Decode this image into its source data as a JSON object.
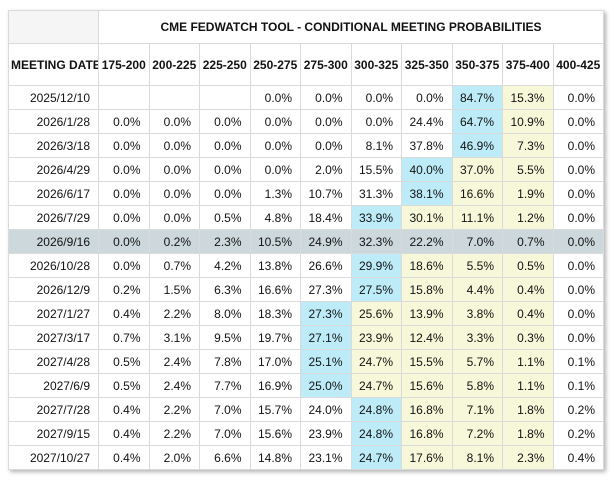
{
  "title": "CME FEDWATCH TOOL - CONDITIONAL MEETING PROBABILITIES",
  "columns": {
    "meeting_date_label": "MEETING DATE",
    "rate_buckets": [
      "175-200",
      "200-225",
      "225-250",
      "250-275",
      "275-300",
      "300-325",
      "325-350",
      "350-375",
      "375-400",
      "400-425"
    ]
  },
  "colors": {
    "max_probability_cell": "#bdecf8",
    "trailing_probability_cells": "#f7f7d9",
    "selected_row": "#ccd8db"
  },
  "rows": [
    {
      "date": "2025/12/10",
      "selected": false,
      "values": [
        "",
        "",
        "",
        "0.0%",
        "0.0%",
        "0.0%",
        "0.0%",
        "84.7%",
        "15.3%",
        "0.0%"
      ],
      "highlights": [
        "",
        "",
        "",
        "",
        "",
        "",
        "",
        "blue",
        "yellow",
        ""
      ]
    },
    {
      "date": "2026/1/28",
      "selected": false,
      "values": [
        "0.0%",
        "0.0%",
        "0.0%",
        "0.0%",
        "0.0%",
        "0.0%",
        "24.4%",
        "64.7%",
        "10.9%",
        "0.0%"
      ],
      "highlights": [
        "",
        "",
        "",
        "",
        "",
        "",
        "",
        "blue",
        "yellow",
        ""
      ]
    },
    {
      "date": "2026/3/18",
      "selected": false,
      "values": [
        "0.0%",
        "0.0%",
        "0.0%",
        "0.0%",
        "0.0%",
        "8.1%",
        "37.8%",
        "46.9%",
        "7.3%",
        "0.0%"
      ],
      "highlights": [
        "",
        "",
        "",
        "",
        "",
        "",
        "",
        "blue",
        "yellow",
        ""
      ]
    },
    {
      "date": "2026/4/29",
      "selected": false,
      "values": [
        "0.0%",
        "0.0%",
        "0.0%",
        "0.0%",
        "2.0%",
        "15.5%",
        "40.0%",
        "37.0%",
        "5.5%",
        "0.0%"
      ],
      "highlights": [
        "",
        "",
        "",
        "",
        "",
        "",
        "blue",
        "yellow",
        "yellow",
        ""
      ]
    },
    {
      "date": "2026/6/17",
      "selected": false,
      "values": [
        "0.0%",
        "0.0%",
        "0.0%",
        "1.3%",
        "10.7%",
        "31.3%",
        "38.1%",
        "16.6%",
        "1.9%",
        "0.0%"
      ],
      "highlights": [
        "",
        "",
        "",
        "",
        "",
        "",
        "blue",
        "yellow",
        "yellow",
        ""
      ]
    },
    {
      "date": "2026/7/29",
      "selected": false,
      "values": [
        "0.0%",
        "0.0%",
        "0.5%",
        "4.8%",
        "18.4%",
        "33.9%",
        "30.1%",
        "11.1%",
        "1.2%",
        "0.0%"
      ],
      "highlights": [
        "",
        "",
        "",
        "",
        "",
        "blue",
        "yellow",
        "yellow",
        "yellow",
        ""
      ]
    },
    {
      "date": "2026/9/16",
      "selected": true,
      "values": [
        "0.0%",
        "0.2%",
        "2.3%",
        "10.5%",
        "24.9%",
        "32.3%",
        "22.2%",
        "7.0%",
        "0.7%",
        "0.0%"
      ],
      "highlights": [
        "",
        "",
        "",
        "",
        "",
        "",
        "",
        "",
        "",
        ""
      ]
    },
    {
      "date": "2026/10/28",
      "selected": false,
      "values": [
        "0.0%",
        "0.7%",
        "4.2%",
        "13.8%",
        "26.6%",
        "29.9%",
        "18.6%",
        "5.5%",
        "0.5%",
        "0.0%"
      ],
      "highlights": [
        "",
        "",
        "",
        "",
        "",
        "blue",
        "yellow",
        "yellow",
        "yellow",
        ""
      ]
    },
    {
      "date": "2026/12/9",
      "selected": false,
      "values": [
        "0.2%",
        "1.5%",
        "6.3%",
        "16.6%",
        "27.3%",
        "27.5%",
        "15.8%",
        "4.4%",
        "0.4%",
        "0.0%"
      ],
      "highlights": [
        "",
        "",
        "",
        "",
        "",
        "blue",
        "yellow",
        "yellow",
        "yellow",
        ""
      ]
    },
    {
      "date": "2027/1/27",
      "selected": false,
      "values": [
        "0.4%",
        "2.2%",
        "8.0%",
        "18.3%",
        "27.3%",
        "25.6%",
        "13.9%",
        "3.8%",
        "0.4%",
        "0.0%"
      ],
      "highlights": [
        "",
        "",
        "",
        "",
        "blue",
        "yellow",
        "yellow",
        "yellow",
        "yellow",
        ""
      ]
    },
    {
      "date": "2027/3/17",
      "selected": false,
      "values": [
        "0.7%",
        "3.1%",
        "9.5%",
        "19.7%",
        "27.1%",
        "23.9%",
        "12.4%",
        "3.3%",
        "0.3%",
        "0.0%"
      ],
      "highlights": [
        "",
        "",
        "",
        "",
        "blue",
        "yellow",
        "yellow",
        "yellow",
        "yellow",
        ""
      ]
    },
    {
      "date": "2027/4/28",
      "selected": false,
      "values": [
        "0.5%",
        "2.4%",
        "7.8%",
        "17.0%",
        "25.1%",
        "24.7%",
        "15.5%",
        "5.7%",
        "1.1%",
        "0.1%"
      ],
      "highlights": [
        "",
        "",
        "",
        "",
        "blue",
        "yellow",
        "yellow",
        "yellow",
        "yellow",
        ""
      ]
    },
    {
      "date": "2027/6/9",
      "selected": false,
      "values": [
        "0.5%",
        "2.4%",
        "7.7%",
        "16.9%",
        "25.0%",
        "24.7%",
        "15.6%",
        "5.8%",
        "1.1%",
        "0.1%"
      ],
      "highlights": [
        "",
        "",
        "",
        "",
        "blue",
        "yellow",
        "yellow",
        "yellow",
        "yellow",
        ""
      ]
    },
    {
      "date": "2027/7/28",
      "selected": false,
      "values": [
        "0.4%",
        "2.2%",
        "7.0%",
        "15.7%",
        "24.0%",
        "24.8%",
        "16.8%",
        "7.1%",
        "1.8%",
        "0.2%"
      ],
      "highlights": [
        "",
        "",
        "",
        "",
        "",
        "blue",
        "yellow",
        "yellow",
        "yellow",
        ""
      ]
    },
    {
      "date": "2027/9/15",
      "selected": false,
      "values": [
        "0.4%",
        "2.2%",
        "7.0%",
        "15.6%",
        "23.9%",
        "24.8%",
        "16.8%",
        "7.2%",
        "1.8%",
        "0.2%"
      ],
      "highlights": [
        "",
        "",
        "",
        "",
        "",
        "blue",
        "yellow",
        "yellow",
        "yellow",
        ""
      ]
    },
    {
      "date": "2027/10/27",
      "selected": false,
      "values": [
        "0.4%",
        "2.0%",
        "6.6%",
        "14.8%",
        "23.1%",
        "24.7%",
        "17.6%",
        "8.1%",
        "2.3%",
        "0.4%"
      ],
      "highlights": [
        "",
        "",
        "",
        "",
        "",
        "blue",
        "yellow",
        "yellow",
        "yellow",
        ""
      ]
    }
  ]
}
